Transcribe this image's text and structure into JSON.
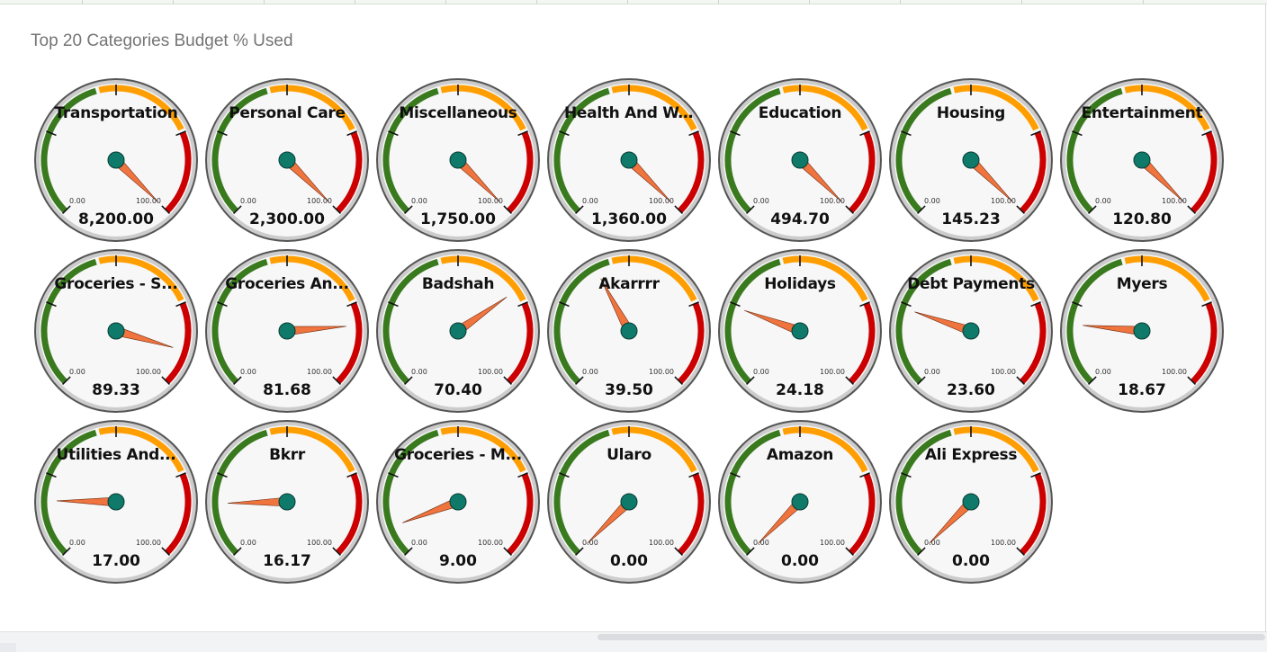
{
  "title": "Top 20 Categories Budget % Used",
  "scale": {
    "min_label": "0.00",
    "max_label": "100.00",
    "min": 0,
    "max": 100
  },
  "colors": {
    "green": "#3a7a1e",
    "orange": "#ff9e00",
    "red": "#cc0000",
    "needle": "#f0743e",
    "hub": "#0f7a6a",
    "face": "#f7f7f7",
    "bezel": "#cccccc"
  },
  "gauges": [
    {
      "label": "Transportation",
      "value": "8,200.00",
      "percent": 8200
    },
    {
      "label": "Personal Care",
      "value": "2,300.00",
      "percent": 2300
    },
    {
      "label": "Miscellaneous",
      "value": "1,750.00",
      "percent": 1750
    },
    {
      "label": "Health And W...",
      "value": "1,360.00",
      "percent": 1360
    },
    {
      "label": "Education",
      "value": "494.70",
      "percent": 494.7
    },
    {
      "label": "Housing",
      "value": "145.23",
      "percent": 145.23
    },
    {
      "label": "Entertainment",
      "value": "120.80",
      "percent": 120.8
    },
    {
      "label": "Groceries - S...",
      "value": "89.33",
      "percent": 89.33
    },
    {
      "label": "Groceries An...",
      "value": "81.68",
      "percent": 81.68
    },
    {
      "label": "Badshah",
      "value": "70.40",
      "percent": 70.4
    },
    {
      "label": "Akarrrr",
      "value": "39.50",
      "percent": 39.5
    },
    {
      "label": "Holidays",
      "value": "24.18",
      "percent": 24.18
    },
    {
      "label": "Debt Payments",
      "value": "23.60",
      "percent": 23.6
    },
    {
      "label": "Myers",
      "value": "18.67",
      "percent": 18.67
    },
    {
      "label": "Utilities And...",
      "value": "17.00",
      "percent": 17
    },
    {
      "label": "Bkrr",
      "value": "16.17",
      "percent": 16.17
    },
    {
      "label": "Groceries - M...",
      "value": "9.00",
      "percent": 9
    },
    {
      "label": "Ularo",
      "value": "0.00",
      "percent": 0
    },
    {
      "label": "Amazon",
      "value": "0.00",
      "percent": 0
    },
    {
      "label": "Ali Express",
      "value": "0.00",
      "percent": 0
    }
  ]
}
